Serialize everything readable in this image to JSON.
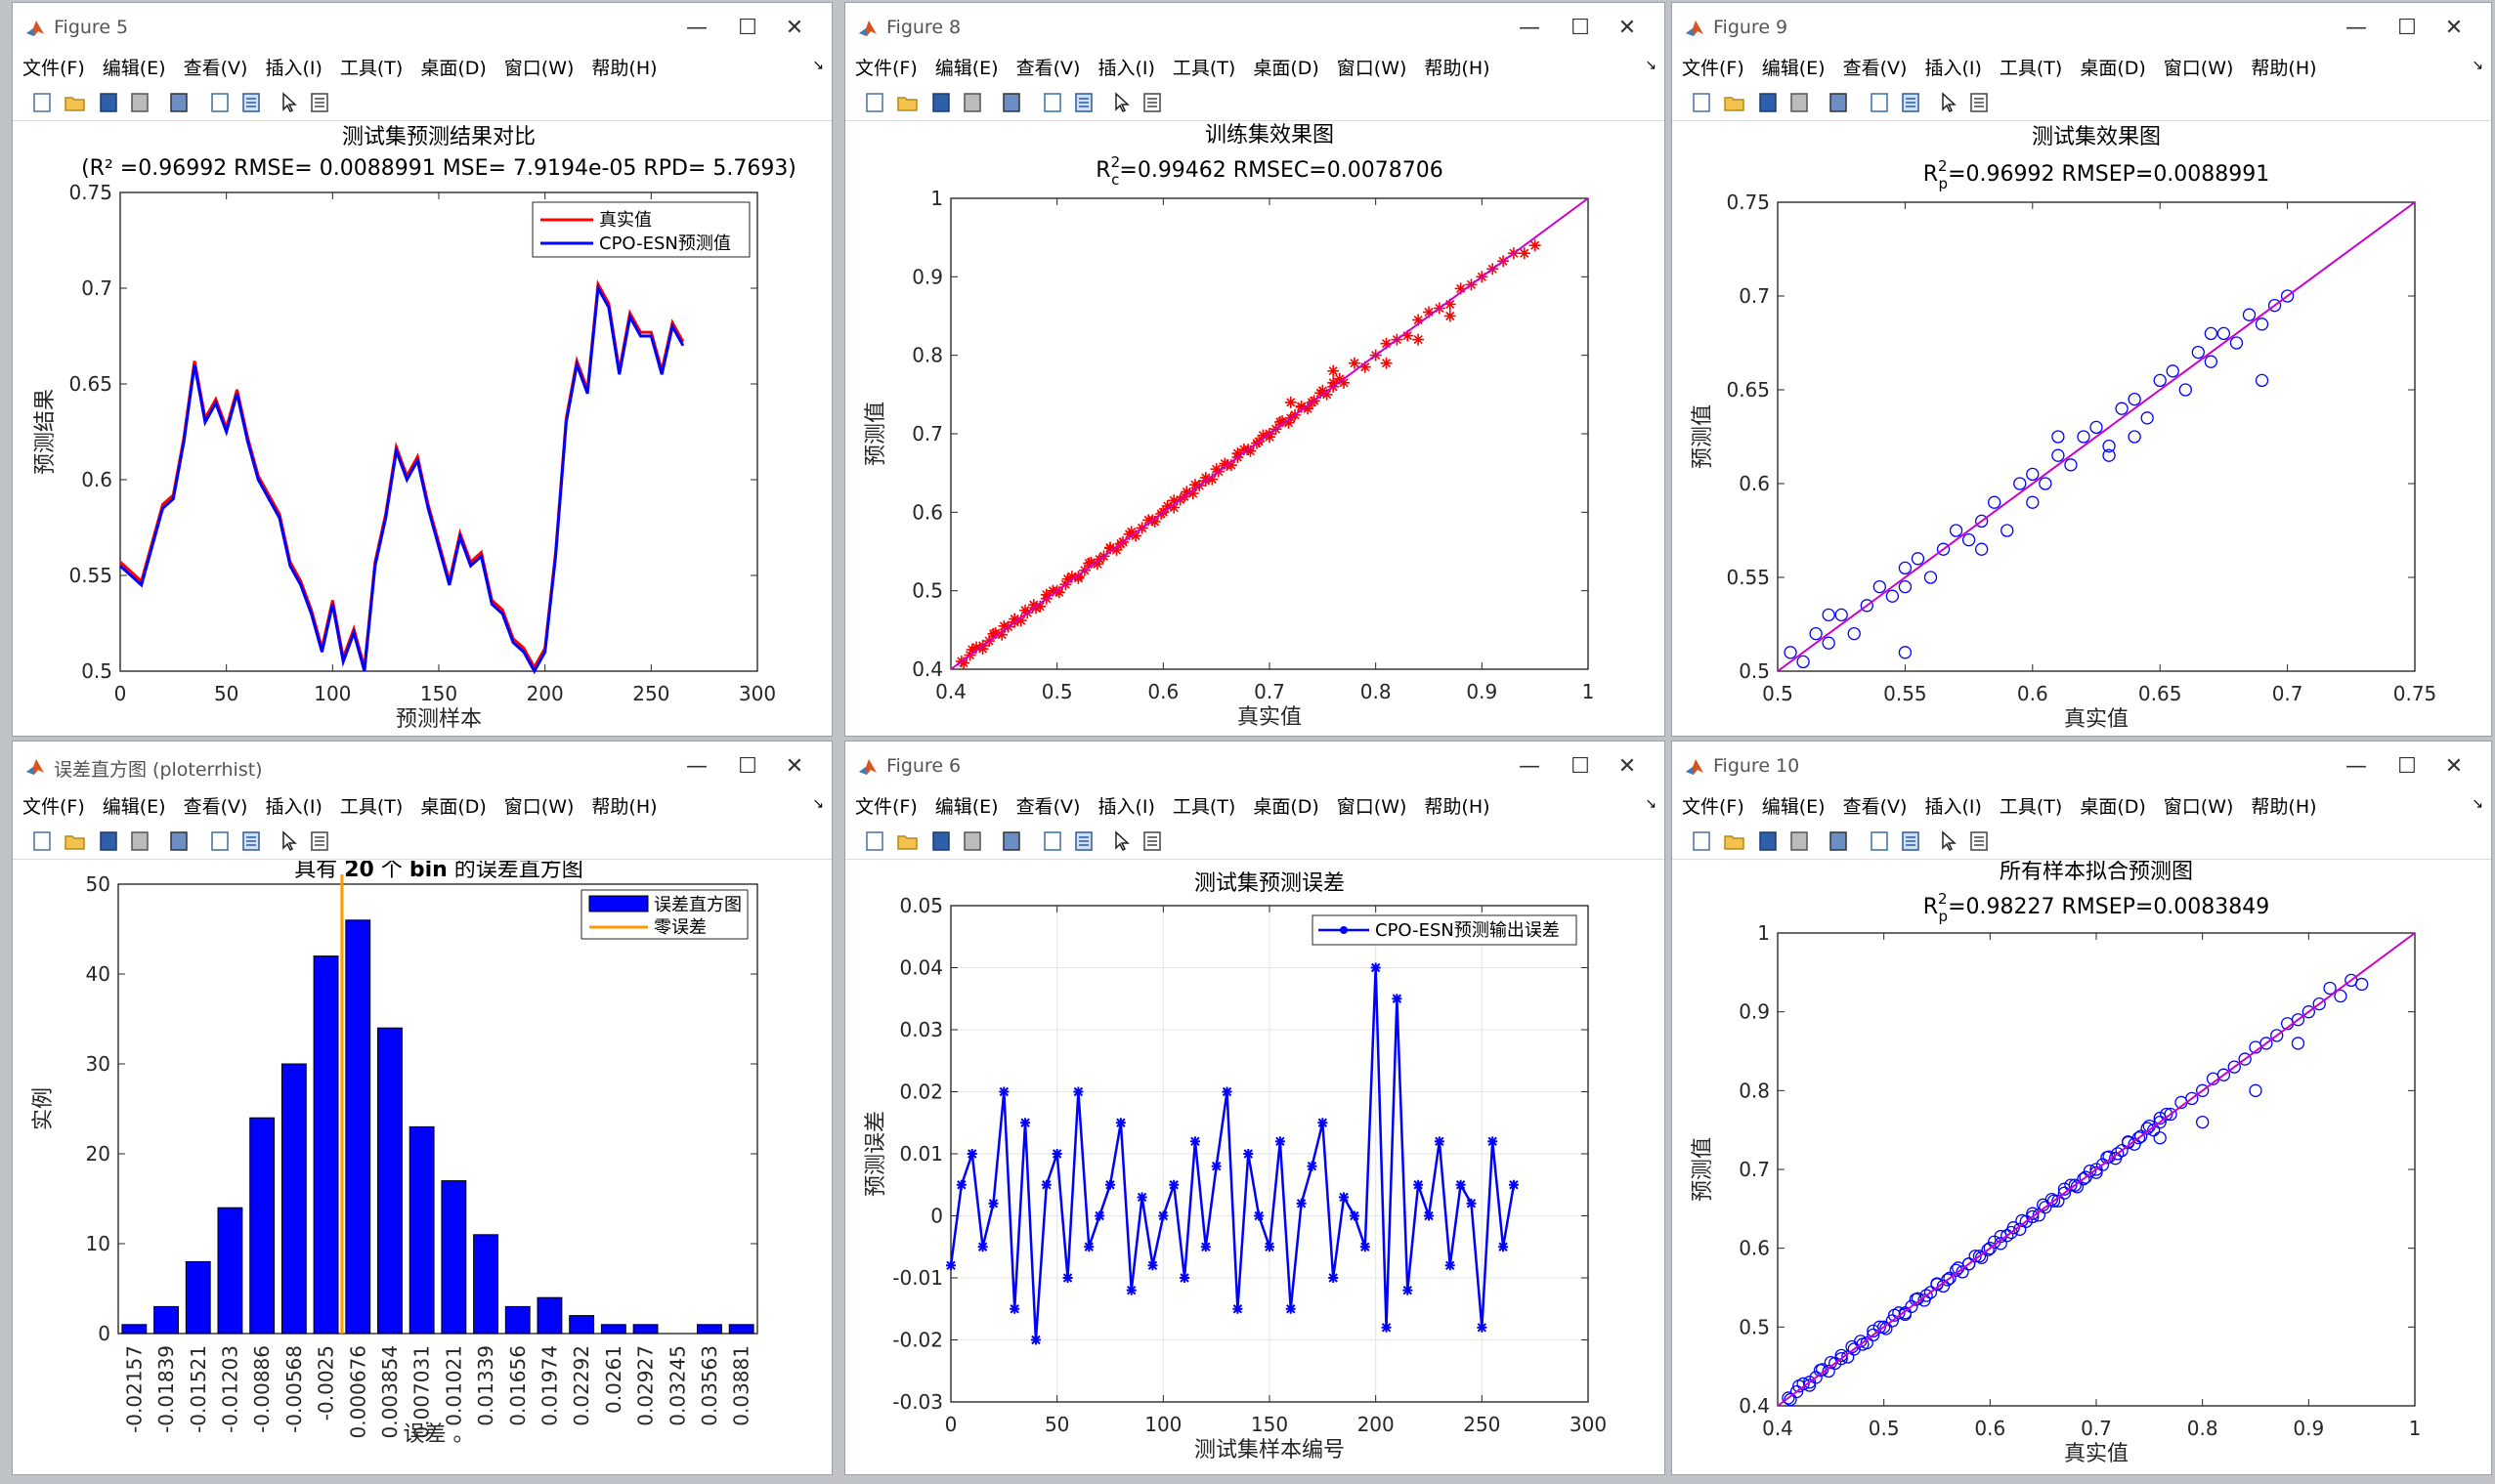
{
  "menu": [
    "文件(F)",
    "编辑(E)",
    "查看(V)",
    "插入(I)",
    "工具(T)",
    "桌面(D)",
    "窗口(W)",
    "帮助(H)"
  ],
  "window_buttons": {
    "minimize": "—",
    "maximize": "☐",
    "close": "✕"
  },
  "windows": {
    "fig5": {
      "title": "Figure 5",
      "chart_data": {
        "type": "line",
        "title": "测试集预测结果对比",
        "subtitle": "(R² =0.96992 RMSE= 0.0088991 MSE= 7.9194e-05 RPD= 5.7693)",
        "xlabel": "预测样本",
        "ylabel": "预测结果",
        "xlim": [
          0,
          300
        ],
        "ylim": [
          0.5,
          0.75
        ],
        "xticks": [
          "0",
          "50",
          "100",
          "150",
          "200",
          "250",
          "300"
        ],
        "yticks": [
          "0.5",
          "0.55",
          "0.6",
          "0.65",
          "0.7",
          "0.75"
        ],
        "legend": [
          "真实值",
          "CPO-ESN预测值"
        ],
        "series": [
          {
            "name": "真实值",
            "color": "#ff0000"
          },
          {
            "name": "CPO-ESN预测值",
            "color": "#0000ff"
          }
        ],
        "x": [
          0,
          10,
          20,
          25,
          30,
          35,
          40,
          45,
          50,
          55,
          60,
          65,
          70,
          75,
          80,
          85,
          90,
          95,
          100,
          105,
          110,
          115,
          120,
          125,
          130,
          135,
          140,
          145,
          150,
          155,
          160,
          165,
          170,
          175,
          180,
          185,
          190,
          195,
          200,
          205,
          210,
          215,
          220,
          225,
          230,
          235,
          240,
          245,
          250,
          255,
          260,
          265
        ],
        "y": [
          0.555,
          0.545,
          0.585,
          0.59,
          0.62,
          0.66,
          0.63,
          0.64,
          0.625,
          0.645,
          0.62,
          0.6,
          0.59,
          0.58,
          0.555,
          0.545,
          0.53,
          0.51,
          0.535,
          0.505,
          0.52,
          0.5,
          0.555,
          0.58,
          0.615,
          0.6,
          0.61,
          0.585,
          0.565,
          0.545,
          0.57,
          0.555,
          0.56,
          0.535,
          0.53,
          0.515,
          0.51,
          0.5,
          0.51,
          0.56,
          0.63,
          0.66,
          0.645,
          0.7,
          0.69,
          0.655,
          0.685,
          0.675,
          0.675,
          0.655,
          0.68,
          0.67
        ]
      }
    },
    "fig8": {
      "title": "Figure 8",
      "chart_data": {
        "type": "scatter",
        "title": "训练集效果图",
        "subtitle": "R²c=0.99462  RMSEC=0.0078706",
        "sub_r": "R",
        "sub_sup": "2",
        "sub_sub": "c",
        "sub_rest": "=0.99462  RMSEC=0.0078706",
        "xlabel": "真实值",
        "ylabel": "预测值",
        "xlim": [
          0.4,
          1
        ],
        "ylim": [
          0.4,
          1
        ],
        "xticks": [
          "0.4",
          "0.5",
          "0.6",
          "0.7",
          "0.8",
          "0.9",
          "1"
        ],
        "yticks": [
          "0.4",
          "0.5",
          "0.6",
          "0.7",
          "0.8",
          "0.9",
          "1"
        ],
        "marker": "asterisk",
        "color": "#ff0000",
        "fit_color": "#cc00cc",
        "x": [
          0.41,
          0.42,
          0.43,
          0.44,
          0.45,
          0.46,
          0.47,
          0.48,
          0.49,
          0.5,
          0.51,
          0.52,
          0.53,
          0.54,
          0.55,
          0.56,
          0.57,
          0.58,
          0.59,
          0.6,
          0.61,
          0.62,
          0.63,
          0.64,
          0.65,
          0.66,
          0.67,
          0.68,
          0.69,
          0.7,
          0.71,
          0.72,
          0.73,
          0.74,
          0.75,
          0.76,
          0.77,
          0.78,
          0.79,
          0.8,
          0.81,
          0.82,
          0.83,
          0.84,
          0.85,
          0.86,
          0.87,
          0.88,
          0.89,
          0.9,
          0.91,
          0.92,
          0.93,
          0.94,
          0.95,
          0.72,
          0.76,
          0.81,
          0.84,
          0.87
        ],
        "y": [
          0.41,
          0.425,
          0.43,
          0.445,
          0.455,
          0.46,
          0.475,
          0.478,
          0.495,
          0.5,
          0.515,
          0.518,
          0.535,
          0.54,
          0.555,
          0.56,
          0.575,
          0.58,
          0.59,
          0.6,
          0.615,
          0.62,
          0.635,
          0.64,
          0.655,
          0.66,
          0.675,
          0.68,
          0.69,
          0.7,
          0.715,
          0.72,
          0.735,
          0.74,
          0.755,
          0.765,
          0.765,
          0.79,
          0.785,
          0.8,
          0.815,
          0.82,
          0.825,
          0.845,
          0.855,
          0.86,
          0.865,
          0.885,
          0.89,
          0.9,
          0.91,
          0.92,
          0.93,
          0.93,
          0.94,
          0.74,
          0.78,
          0.79,
          0.82,
          0.85
        ]
      }
    },
    "fig9": {
      "title": "Figure 9",
      "chart_data": {
        "type": "scatter",
        "title": "测试集效果图",
        "subtitle": "R²p=0.96992  RMSEP=0.0088991",
        "sub_r": "R",
        "sub_sup": "2",
        "sub_sub": "p",
        "sub_rest": "=0.96992  RMSEP=0.0088991",
        "xlabel": "真实值",
        "ylabel": "预测值",
        "xlim": [
          0.5,
          0.75
        ],
        "ylim": [
          0.5,
          0.75
        ],
        "xticks": [
          "0.5",
          "0.55",
          "0.6",
          "0.65",
          "0.7",
          "0.75"
        ],
        "yticks": [
          "0.5",
          "0.55",
          "0.6",
          "0.65",
          "0.7",
          "0.75"
        ],
        "marker": "circle",
        "color": "#0000ff",
        "fit_color": "#cc00cc",
        "x": [
          0.505,
          0.51,
          0.515,
          0.52,
          0.525,
          0.53,
          0.535,
          0.54,
          0.545,
          0.55,
          0.555,
          0.56,
          0.565,
          0.57,
          0.575,
          0.58,
          0.585,
          0.59,
          0.595,
          0.6,
          0.605,
          0.61,
          0.615,
          0.62,
          0.625,
          0.63,
          0.635,
          0.64,
          0.645,
          0.65,
          0.655,
          0.66,
          0.665,
          0.67,
          0.675,
          0.68,
          0.685,
          0.69,
          0.695,
          0.7,
          0.52,
          0.55,
          0.58,
          0.61,
          0.64,
          0.67,
          0.55,
          0.6,
          0.63,
          0.69
        ],
        "y": [
          0.51,
          0.505,
          0.52,
          0.515,
          0.53,
          0.52,
          0.535,
          0.545,
          0.54,
          0.555,
          0.56,
          0.55,
          0.565,
          0.575,
          0.57,
          0.58,
          0.59,
          0.575,
          0.6,
          0.605,
          0.6,
          0.615,
          0.61,
          0.625,
          0.63,
          0.62,
          0.64,
          0.645,
          0.635,
          0.655,
          0.66,
          0.65,
          0.67,
          0.665,
          0.68,
          0.675,
          0.69,
          0.685,
          0.695,
          0.7,
          0.53,
          0.545,
          0.565,
          0.625,
          0.625,
          0.68,
          0.51,
          0.59,
          0.615,
          0.655
        ]
      }
    },
    "hist": {
      "title": "误差直方图 (ploterrhist)",
      "chart_data": {
        "type": "bar",
        "title_parts": [
          "具有 ",
          "20",
          " 个 ",
          "bin",
          " 的误差直方图"
        ],
        "xlabel": "误差 。",
        "ylabel": "实例",
        "ylim": [
          0,
          50
        ],
        "yticks": [
          "0",
          "10",
          "20",
          "30",
          "40",
          "50"
        ],
        "categories": [
          "-0.02157",
          "-0.01839",
          "-0.01521",
          "-0.01203",
          "-0.00886",
          "-0.00568",
          "-0.0025",
          "0.000676",
          "0.003854",
          "0.007031",
          "0.01021",
          "0.01339",
          "0.01656",
          "0.01974",
          "0.02292",
          "0.0261",
          "0.02927",
          "0.03245",
          "0.03563",
          "0.03881"
        ],
        "values": [
          1,
          3,
          8,
          14,
          24,
          30,
          42,
          46,
          34,
          23,
          17,
          11,
          3,
          4,
          2,
          1,
          1,
          0,
          1,
          1
        ],
        "legend": [
          "误差直方图",
          "零误差"
        ],
        "bar_color": "#0000ff",
        "zero_color": "#ff9900",
        "zero_position": 0.5
      }
    },
    "fig6": {
      "title": "Figure 6",
      "chart_data": {
        "type": "line",
        "title": "测试集预测误差",
        "xlabel": "测试集样本编号",
        "ylabel": "预测误差",
        "xlim": [
          0,
          300
        ],
        "ylim": [
          -0.03,
          0.05
        ],
        "xticks": [
          "0",
          "50",
          "100",
          "150",
          "200",
          "250",
          "300"
        ],
        "yticks": [
          "-0.03",
          "-0.02",
          "-0.01",
          "0",
          "0.01",
          "0.02",
          "0.03",
          "0.04",
          "0.05"
        ],
        "legend": [
          "CPO-ESN预测输出误差"
        ],
        "grid": true,
        "color": "#0000ff",
        "x": [
          0,
          5,
          10,
          15,
          20,
          25,
          30,
          35,
          40,
          45,
          50,
          55,
          60,
          65,
          70,
          75,
          80,
          85,
          90,
          95,
          100,
          105,
          110,
          115,
          120,
          125,
          130,
          135,
          140,
          145,
          150,
          155,
          160,
          165,
          170,
          175,
          180,
          185,
          190,
          195,
          200,
          205,
          210,
          215,
          220,
          225,
          230,
          235,
          240,
          245,
          250,
          255,
          260,
          265
        ],
        "y": [
          -0.008,
          0.005,
          0.01,
          -0.005,
          0.002,
          0.02,
          -0.015,
          0.015,
          -0.02,
          0.005,
          0.01,
          -0.01,
          0.02,
          -0.005,
          0.0,
          0.005,
          0.015,
          -0.012,
          0.003,
          -0.008,
          0.0,
          0.005,
          -0.01,
          0.012,
          -0.005,
          0.008,
          0.02,
          -0.015,
          0.01,
          0.0,
          -0.005,
          0.012,
          -0.015,
          0.002,
          0.008,
          0.015,
          -0.01,
          0.003,
          0.0,
          -0.005,
          0.04,
          -0.018,
          0.035,
          -0.012,
          0.005,
          0.0,
          0.012,
          -0.008,
          0.005,
          0.002,
          -0.018,
          0.012,
          -0.005,
          0.005
        ]
      }
    },
    "fig10": {
      "title": "Figure 10",
      "chart_data": {
        "type": "scatter",
        "title": "所有样本拟合预测图",
        "subtitle": "R²p=0.98227  RMSEP=0.0083849",
        "sub_r": "R",
        "sub_sup": "2",
        "sub_sub": "p",
        "sub_rest": "=0.98227  RMSEP=0.0083849",
        "xlabel": "真实值",
        "ylabel": "预测值",
        "xlim": [
          0.4,
          1
        ],
        "ylim": [
          0.4,
          1
        ],
        "xticks": [
          "0.4",
          "0.5",
          "0.6",
          "0.7",
          "0.8",
          "0.9",
          "1"
        ],
        "yticks": [
          "0.4",
          "0.5",
          "0.6",
          "0.7",
          "0.8",
          "0.9",
          "1"
        ],
        "marker": "circle",
        "color": "#0000ff",
        "fit_color": "#cc00cc",
        "x": [
          0.41,
          0.42,
          0.43,
          0.44,
          0.45,
          0.46,
          0.47,
          0.48,
          0.49,
          0.5,
          0.51,
          0.52,
          0.53,
          0.54,
          0.55,
          0.56,
          0.57,
          0.58,
          0.59,
          0.6,
          0.61,
          0.62,
          0.63,
          0.64,
          0.65,
          0.66,
          0.67,
          0.68,
          0.69,
          0.7,
          0.71,
          0.72,
          0.73,
          0.74,
          0.75,
          0.76,
          0.77,
          0.78,
          0.79,
          0.8,
          0.81,
          0.82,
          0.83,
          0.84,
          0.85,
          0.86,
          0.87,
          0.88,
          0.89,
          0.9,
          0.91,
          0.92,
          0.93,
          0.94,
          0.95,
          0.76,
          0.8,
          0.85,
          0.89
        ],
        "y": [
          0.41,
          0.425,
          0.43,
          0.445,
          0.455,
          0.46,
          0.475,
          0.478,
          0.495,
          0.5,
          0.515,
          0.518,
          0.535,
          0.54,
          0.555,
          0.56,
          0.575,
          0.58,
          0.59,
          0.6,
          0.615,
          0.62,
          0.635,
          0.64,
          0.655,
          0.66,
          0.675,
          0.68,
          0.69,
          0.7,
          0.715,
          0.72,
          0.735,
          0.74,
          0.755,
          0.765,
          0.77,
          0.785,
          0.79,
          0.8,
          0.815,
          0.82,
          0.83,
          0.84,
          0.855,
          0.86,
          0.87,
          0.885,
          0.89,
          0.9,
          0.91,
          0.93,
          0.92,
          0.94,
          0.935,
          0.74,
          0.76,
          0.8,
          0.86
        ]
      }
    }
  }
}
